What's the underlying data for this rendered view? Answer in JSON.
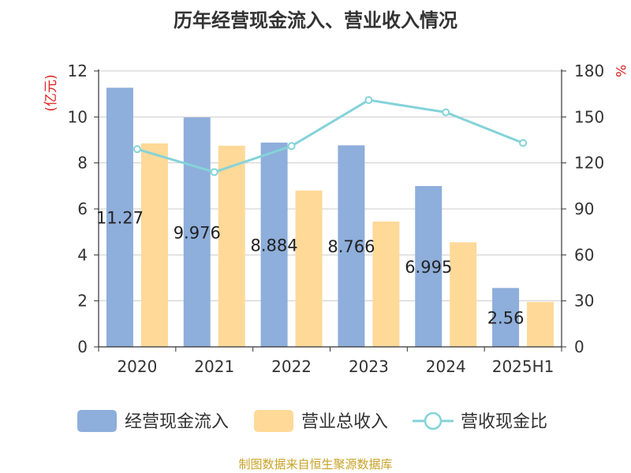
{
  "title": "历年经营现金流入、营业收入情况",
  "source": "制图数据来自恒生聚源数据库",
  "chart_data": {
    "type": "bar",
    "categories": [
      "2020",
      "2021",
      "2022",
      "2023",
      "2024",
      "2025H1"
    ],
    "y_left": {
      "unit_label": "(亿元)",
      "ylim": [
        0,
        12
      ],
      "ticks": [
        0,
        2,
        4,
        6,
        8,
        10,
        12
      ]
    },
    "y_right": {
      "unit_label": "%",
      "ylim": [
        0,
        180
      ],
      "ticks": [
        0,
        30,
        60,
        90,
        120,
        150,
        180
      ]
    },
    "grid": true,
    "legend_position": "bottom",
    "series": [
      {
        "name": "经营现金流入",
        "type": "bar",
        "axis": "left",
        "color": "#8eaedb",
        "values": [
          11.27,
          9.976,
          8.884,
          8.766,
          6.995,
          2.56
        ],
        "labels": [
          "11.27",
          "9.976",
          "8.884",
          "8.766",
          "6.995",
          "2.56"
        ]
      },
      {
        "name": "营业总收入",
        "type": "bar",
        "axis": "left",
        "color": "#fed998",
        "values": [
          8.85,
          8.75,
          6.8,
          5.45,
          4.55,
          1.95
        ]
      },
      {
        "name": "营收现金比",
        "type": "line",
        "axis": "right",
        "color": "#84d3d9",
        "values": [
          129,
          114,
          131,
          161,
          153,
          133
        ]
      }
    ]
  }
}
